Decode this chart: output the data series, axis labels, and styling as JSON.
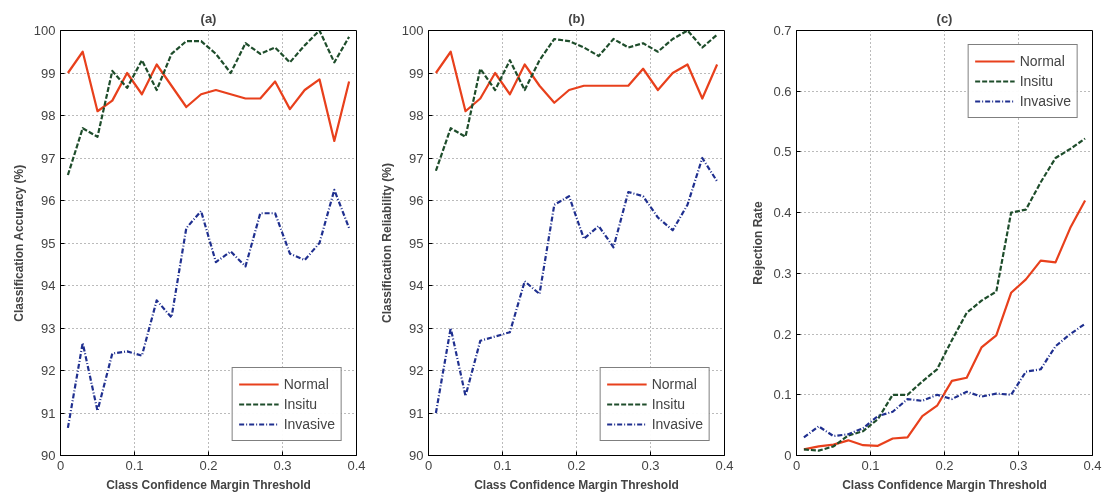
{
  "chart_data": [
    {
      "type": "line",
      "title": "(a)",
      "xlabel": "Class Confidence Margin Threshold",
      "ylabel": "Classification Accuracy (%)",
      "x": [
        0.01,
        0.03,
        0.05,
        0.07,
        0.09,
        0.11,
        0.13,
        0.15,
        0.17,
        0.19,
        0.21,
        0.23,
        0.25,
        0.27,
        0.29,
        0.31,
        0.33,
        0.35,
        0.37,
        0.39
      ],
      "xlim": [
        0,
        0.4
      ],
      "xticks": [
        0,
        0.1,
        0.2,
        0.3,
        0.4
      ],
      "ylim": [
        90,
        100
      ],
      "yticks": [
        90,
        91,
        92,
        93,
        94,
        95,
        96,
        97,
        98,
        99,
        100
      ],
      "grid": true,
      "legend": "bottom right",
      "series": [
        {
          "name": "Normal",
          "color": "#e8401c",
          "line_style": "solid",
          "values": [
            99.0,
            99.5,
            98.1,
            98.35,
            99.0,
            98.5,
            99.2,
            98.7,
            98.2,
            98.5,
            98.6,
            98.5,
            98.4,
            98.4,
            98.8,
            98.15,
            98.6,
            98.85,
            97.4,
            98.8
          ]
        },
        {
          "name": "Insitu",
          "color": "#1e4d2b",
          "line_style": "dashed",
          "values": [
            96.6,
            97.7,
            97.5,
            99.05,
            98.65,
            99.3,
            98.6,
            99.45,
            99.75,
            99.75,
            99.45,
            99.0,
            99.7,
            99.45,
            99.6,
            99.25,
            99.65,
            100.0,
            99.25,
            99.85
          ]
        },
        {
          "name": "Invasive",
          "color": "#1f2f8f",
          "line_style": "dashdot",
          "values": [
            90.65,
            92.65,
            91.05,
            92.4,
            92.45,
            92.35,
            93.65,
            93.25,
            95.35,
            95.75,
            94.55,
            94.8,
            94.45,
            95.7,
            95.7,
            94.75,
            94.6,
            95.0,
            96.25,
            95.35
          ]
        }
      ]
    },
    {
      "type": "line",
      "title": "(b)",
      "xlabel": "Class Confidence Margin Threshold",
      "ylabel": "Classification Reliability (%)",
      "x": [
        0.01,
        0.03,
        0.05,
        0.07,
        0.09,
        0.11,
        0.13,
        0.15,
        0.17,
        0.19,
        0.21,
        0.23,
        0.25,
        0.27,
        0.29,
        0.31,
        0.33,
        0.35,
        0.37,
        0.39
      ],
      "xlim": [
        0,
        0.4
      ],
      "xticks": [
        0,
        0.1,
        0.2,
        0.3,
        0.4
      ],
      "ylim": [
        90,
        100
      ],
      "yticks": [
        90,
        91,
        92,
        93,
        94,
        95,
        96,
        97,
        98,
        99,
        100
      ],
      "grid": true,
      "legend": "bottom right",
      "series": [
        {
          "name": "Normal",
          "color": "#e8401c",
          "line_style": "solid",
          "values": [
            99.0,
            99.5,
            98.1,
            98.4,
            99.0,
            98.5,
            99.2,
            98.7,
            98.3,
            98.6,
            98.7,
            98.7,
            98.7,
            98.7,
            99.1,
            98.6,
            99.0,
            99.2,
            98.4,
            99.2
          ]
        },
        {
          "name": "Insitu",
          "color": "#1e4d2b",
          "line_style": "dashed",
          "values": [
            96.7,
            97.7,
            97.5,
            99.1,
            98.6,
            99.3,
            98.6,
            99.3,
            99.8,
            99.75,
            99.6,
            99.4,
            99.8,
            99.6,
            99.7,
            99.5,
            99.8,
            100.0,
            99.6,
            99.9
          ]
        },
        {
          "name": "Invasive",
          "color": "#1f2f8f",
          "line_style": "dashdot",
          "values": [
            91.0,
            93.0,
            91.4,
            92.7,
            92.8,
            92.9,
            94.1,
            93.8,
            95.9,
            96.1,
            95.1,
            95.4,
            94.9,
            96.2,
            96.1,
            95.6,
            95.3,
            95.9,
            97.0,
            96.45
          ]
        }
      ]
    },
    {
      "type": "line",
      "title": "(c)",
      "xlabel": "Class Confidence Margin Threshold",
      "ylabel": "Rejection Rate",
      "x": [
        0.01,
        0.03,
        0.05,
        0.07,
        0.09,
        0.11,
        0.13,
        0.15,
        0.17,
        0.19,
        0.21,
        0.23,
        0.25,
        0.27,
        0.29,
        0.31,
        0.33,
        0.35,
        0.37,
        0.39
      ],
      "xlim": [
        0,
        0.4
      ],
      "xticks": [
        0,
        0.1,
        0.2,
        0.3,
        0.4
      ],
      "ylim": [
        0,
        0.7
      ],
      "yticks": [
        0,
        0.1,
        0.2,
        0.3,
        0.4,
        0.5,
        0.6,
        0.7
      ],
      "grid": true,
      "legend": "top right",
      "series": [
        {
          "name": "Normal",
          "color": "#e8401c",
          "line_style": "solid",
          "values": [
            0.01,
            0.015,
            0.018,
            0.025,
            0.017,
            0.016,
            0.028,
            0.03,
            0.065,
            0.082,
            0.123,
            0.128,
            0.178,
            0.198,
            0.268,
            0.29,
            0.321,
            0.318,
            0.375,
            0.42
          ]
        },
        {
          "name": "Insitu",
          "color": "#1e4d2b",
          "line_style": "dashed",
          "values": [
            0.01,
            0.008,
            0.015,
            0.033,
            0.04,
            0.06,
            0.1,
            0.1,
            0.122,
            0.142,
            0.19,
            0.235,
            0.255,
            0.27,
            0.4,
            0.405,
            0.45,
            0.49,
            0.505,
            0.522
          ]
        },
        {
          "name": "Invasive",
          "color": "#1f2f8f",
          "line_style": "dashdot",
          "values": [
            0.03,
            0.048,
            0.032,
            0.035,
            0.045,
            0.065,
            0.072,
            0.093,
            0.09,
            0.1,
            0.093,
            0.105,
            0.097,
            0.102,
            0.1,
            0.138,
            0.142,
            0.18,
            0.2,
            0.217
          ]
        }
      ]
    }
  ]
}
